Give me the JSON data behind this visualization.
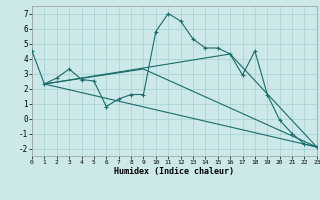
{
  "background_color": "#cce8e8",
  "grid_color": "#aad4d4",
  "line_color": "#1a6b6b",
  "xlabel": "Humidex (Indice chaleur)",
  "xlim": [
    0,
    23
  ],
  "ylim": [
    -2.5,
    7.5
  ],
  "yticks": [
    -2,
    -1,
    0,
    1,
    2,
    3,
    4,
    5,
    6,
    7
  ],
  "xticks": [
    0,
    1,
    2,
    3,
    4,
    5,
    6,
    7,
    8,
    9,
    10,
    11,
    12,
    13,
    14,
    15,
    16,
    17,
    18,
    19,
    20,
    21,
    22,
    23
  ],
  "main_line": {
    "x": [
      0,
      1,
      2,
      3,
      4,
      5,
      6,
      7,
      8,
      9,
      10,
      11,
      12,
      13,
      14,
      15,
      16,
      17,
      18,
      19,
      20,
      21,
      22,
      23
    ],
    "y": [
      4.5,
      2.3,
      2.7,
      3.3,
      2.6,
      2.5,
      0.8,
      1.3,
      1.6,
      1.6,
      5.8,
      7.0,
      6.5,
      5.3,
      4.7,
      4.7,
      4.3,
      2.9,
      4.5,
      1.6,
      -0.1,
      -1.0,
      -1.7,
      -1.9
    ]
  },
  "trend_lines": [
    {
      "x": [
        1,
        23
      ],
      "y": [
        2.3,
        -1.9
      ]
    },
    {
      "x": [
        1,
        9,
        23
      ],
      "y": [
        2.3,
        3.3,
        -1.9
      ]
    },
    {
      "x": [
        1,
        16,
        23
      ],
      "y": [
        2.3,
        4.3,
        -1.9
      ]
    }
  ]
}
